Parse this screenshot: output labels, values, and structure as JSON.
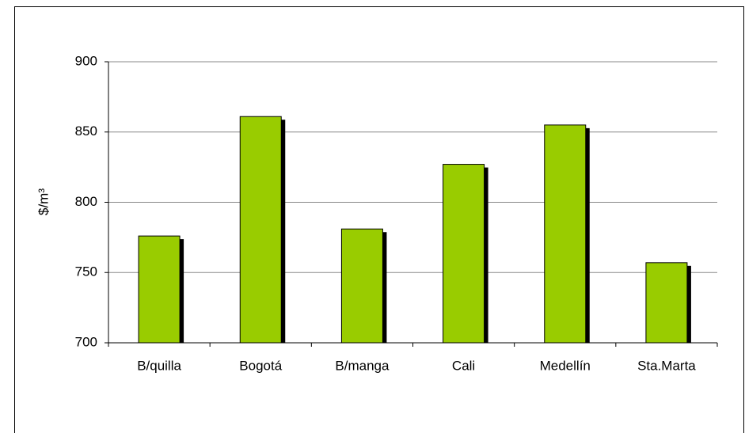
{
  "chart_data": {
    "type": "bar",
    "y_label": "$/m³",
    "categories": [
      "B/quilla",
      "Bogotá",
      "B/manga",
      "Cali",
      "Medellín",
      "Sta.Marta"
    ],
    "values": [
      776,
      861,
      781,
      827,
      855,
      757
    ],
    "color": "#99cc00",
    "ylim": [
      700,
      900
    ],
    "yticks": [
      700,
      750,
      800,
      850,
      900
    ],
    "grid": true
  }
}
